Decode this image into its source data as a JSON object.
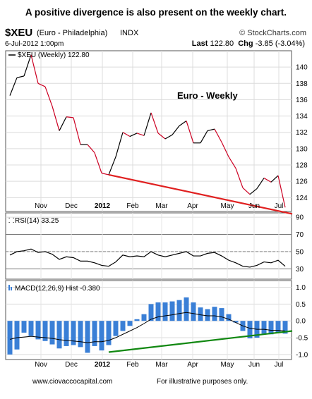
{
  "caption": "A positive divergence is also present on the weekly chart.",
  "footer": {
    "website": "www.ciovaccocapital.com",
    "disclaimer": "For illustrative purposes only."
  },
  "header": {
    "symbol": "$XEU",
    "description": "(Euro - Philadelphia)",
    "exchange": "INDX",
    "source": "© StockCharts.com",
    "datetime": "6-Jul-2012 1:00pm",
    "last_label": "Last",
    "last_value": "122.80",
    "chg_label": "Chg",
    "chg_value": "-3.85 (-3.04%)"
  },
  "chart_data": [
    {
      "type": "line",
      "legend": "$XEU (Weekly) 122.80",
      "annotation": "Euro - Weekly",
      "x_labels": [
        "Nov",
        "Dec",
        "2012",
        "Feb",
        "Mar",
        "Apr",
        "May",
        "Jun",
        "Jul"
      ],
      "x_label_weeks": [
        4.4,
        8.7,
        13.1,
        17.4,
        21.5,
        25.9,
        30.8,
        34.6,
        38.1
      ],
      "y_ticks": [
        124,
        126,
        128,
        130,
        132,
        134,
        136,
        138,
        140
      ],
      "ylim": [
        122.3,
        142.0
      ],
      "axis_side": "right",
      "grid": true,
      "up_color": "#000000",
      "down_color": "#cc0022",
      "values": [
        136.5,
        138.7,
        138.9,
        141.5,
        138.0,
        137.6,
        135.2,
        132.2,
        133.9,
        133.8,
        130.5,
        130.5,
        129.5,
        127.0,
        126.8,
        129.0,
        132.0,
        131.5,
        131.9,
        131.6,
        134.4,
        131.9,
        131.2,
        131.7,
        132.8,
        133.4,
        130.7,
        130.7,
        132.2,
        132.4,
        130.8,
        129.0,
        127.6,
        125.2,
        124.4,
        125.1,
        126.4,
        125.9,
        126.7,
        122.8
      ],
      "trendline": {
        "start": [
          14,
          126.8
        ],
        "end": [
          40,
          122.0
        ],
        "color": "#e02020"
      }
    },
    {
      "type": "line",
      "legend": "RSI(14) 33.25",
      "y_ticks": [
        30,
        50,
        70,
        90
      ],
      "ylim": [
        18,
        95
      ],
      "reference_lines": [
        30,
        70
      ],
      "color": "#000000",
      "values": [
        46,
        50,
        51,
        53,
        49,
        50,
        47,
        41,
        44,
        43,
        39,
        39,
        37,
        34,
        33,
        38,
        46,
        44,
        45,
        44,
        50,
        46,
        44,
        46,
        48,
        50,
        45,
        45,
        48,
        49,
        45,
        40,
        37,
        33,
        32,
        34,
        38,
        37,
        40,
        33
      ]
    },
    {
      "type": "bar+line",
      "legend": "MACD(12,26,9) Hist -0.380",
      "y_ticks": [
        -1.0,
        -0.5,
        0.0,
        0.5,
        1.0
      ],
      "ylim": [
        -1.15,
        1.2
      ],
      "hist_color": "#3a7fd6",
      "line_color": "#000000",
      "histogram": [
        -1.0,
        -0.85,
        -0.35,
        -0.45,
        -0.55,
        -0.6,
        -0.7,
        -0.82,
        -0.75,
        -0.72,
        -0.78,
        -0.95,
        -0.75,
        -0.88,
        -0.72,
        -0.45,
        -0.3,
        -0.15,
        0.05,
        0.2,
        0.5,
        0.55,
        0.55,
        0.58,
        0.62,
        0.7,
        0.55,
        0.4,
        0.35,
        0.42,
        0.38,
        0.2,
        -0.05,
        -0.3,
        -0.52,
        -0.5,
        -0.38,
        -0.4,
        -0.35,
        -0.38
      ],
      "macd_line": [
        -0.55,
        -0.5,
        -0.48,
        -0.46,
        -0.48,
        -0.5,
        -0.52,
        -0.56,
        -0.58,
        -0.6,
        -0.62,
        -0.65,
        -0.62,
        -0.62,
        -0.58,
        -0.5,
        -0.4,
        -0.3,
        -0.2,
        -0.08,
        0.05,
        0.12,
        0.15,
        0.18,
        0.22,
        0.25,
        0.22,
        0.18,
        0.15,
        0.15,
        0.12,
        0.05,
        -0.05,
        -0.15,
        -0.22,
        -0.25,
        -0.25,
        -0.28,
        -0.28,
        -0.3
      ],
      "trendline": {
        "start": [
          14,
          -0.93
        ],
        "end": [
          40,
          -0.3
        ],
        "color": "#118811"
      }
    }
  ]
}
